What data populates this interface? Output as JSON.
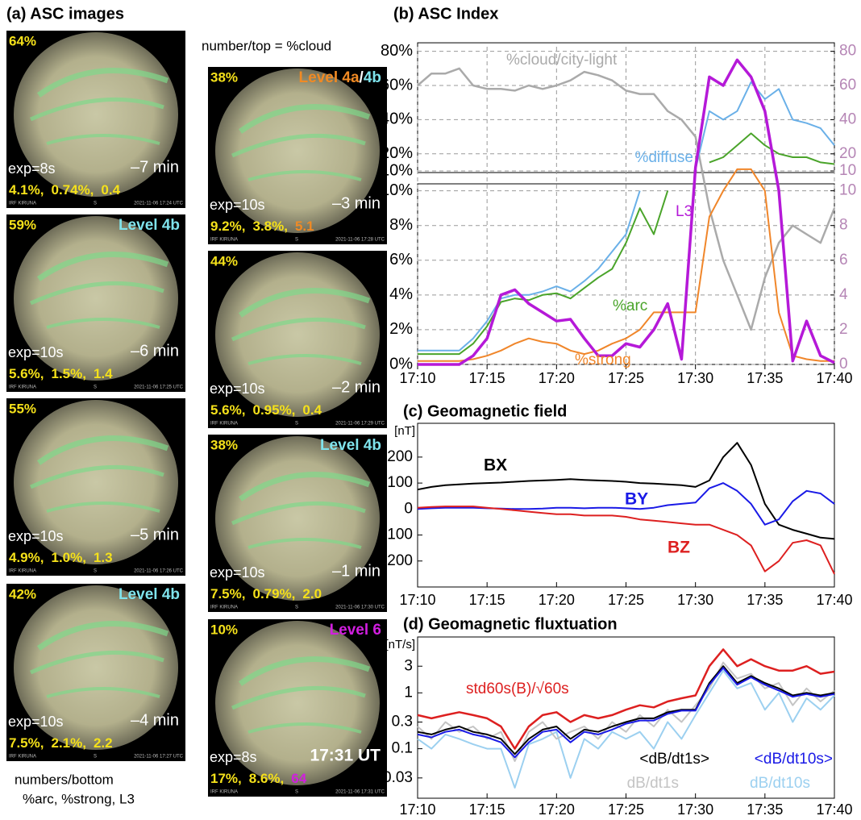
{
  "panel_a": {
    "title": "(a) ASC images",
    "note_top": "number/top = %cloud",
    "note_bottom": [
      "numbers/bottom",
      "%arc, %strong, L3"
    ],
    "bottom_color": "#f5e11a",
    "cloud_color": "#f5e11a",
    "tiles": [
      {
        "cloud": "64%",
        "exp": "exp=8s",
        "time": "–7 min",
        "bottom": [
          "4.1%,",
          "0.74%,",
          "0.4"
        ],
        "footer": [
          "IRF KIRUNA",
          "S",
          "2021-11-06 17:24 UTC"
        ]
      },
      {
        "cloud": "59%",
        "level": [
          {
            "text": "Level 4b",
            "color": "#7fe3ec"
          }
        ],
        "exp": "exp=10s",
        "time": "–6 min",
        "bottom": [
          "5.6%,",
          "1.5%,",
          "1.4"
        ],
        "footer": [
          "IRF KIRUNA",
          "S",
          "2021-11-06 17:25 UTC"
        ]
      },
      {
        "cloud": "55%",
        "exp": "exp=10s",
        "time": "–5 min",
        "bottom": [
          "4.9%,",
          "1.0%,",
          "1.3"
        ],
        "footer": [
          "IRF KIRUNA",
          "S",
          "2021-11-06 17:26 UTC"
        ]
      },
      {
        "cloud": "42%",
        "level": [
          {
            "text": "Level 4b",
            "color": "#7fe3ec"
          }
        ],
        "exp": "exp=10s",
        "time": "–4 min",
        "bottom": [
          "7.5%,",
          "2.1%,",
          "2.2"
        ],
        "footer": [
          "IRF KIRUNA",
          "S",
          "2021-11-06 17:27 UTC"
        ]
      },
      {
        "cloud": "38%",
        "level": [
          {
            "text": "Level 4a",
            "color": "#f08a24"
          },
          {
            "text": "/",
            "color": "#ffffff"
          },
          {
            "text": "4b",
            "color": "#7fe3ec"
          }
        ],
        "exp": "exp=10s",
        "time": "–3 min",
        "bottom": [
          "9.2%,",
          "3.8%,",
          "5.1"
        ],
        "l3_color": "#f08a24",
        "footer": [
          "IRF KIRUNA",
          "S",
          "2021-11-06 17:28 UTC"
        ]
      },
      {
        "cloud": "44%",
        "exp": "exp=10s",
        "time": "–2 min",
        "bottom": [
          "5.6%,",
          "0.95%,",
          "0.4"
        ],
        "footer": [
          "IRF KIRUNA",
          "S",
          "2021-11-06 17:29 UTC"
        ]
      },
      {
        "cloud": "38%",
        "level": [
          {
            "text": "Level 4b",
            "color": "#7fe3ec"
          }
        ],
        "exp": "exp=10s",
        "time": "–1 min",
        "bottom": [
          "7.5%,",
          "0.79%,",
          "2.0"
        ],
        "footer": [
          "IRF KIRUNA",
          "S",
          "2021-11-06 17:30 UTC"
        ]
      },
      {
        "cloud": "10%",
        "level": [
          {
            "text": "Level 6",
            "color": "#d21ee0"
          }
        ],
        "exp": "exp=8s",
        "time": "17:31 UT",
        "bottom": [
          "17%,",
          "8.6%,",
          "64"
        ],
        "l3_color": "#d21ee0",
        "footer": [
          "IRF KIRUNA",
          "S",
          "2021-11-06 17:31 UTC"
        ]
      }
    ]
  },
  "chart_data": [
    {
      "type": "line",
      "title": "(b) ASC Index",
      "grid": true,
      "x": [
        "17:10",
        "17:11",
        "17:12",
        "17:13",
        "17:14",
        "17:15",
        "17:16",
        "17:17",
        "17:18",
        "17:19",
        "17:20",
        "17:21",
        "17:22",
        "17:23",
        "17:24",
        "17:25",
        "17:26",
        "17:27",
        "17:28",
        "17:29",
        "17:30",
        "17:31",
        "17:32",
        "17:33",
        "17:34",
        "17:35",
        "17:36",
        "17:37",
        "17:38",
        "17:39",
        "17:40"
      ],
      "xlim": [
        "17:10",
        "17:40"
      ],
      "xticks": [
        "17:10",
        "17:15",
        "17:20",
        "17:25",
        "17:30",
        "17:35",
        "17:40"
      ],
      "ylim_top": [
        10,
        85
      ],
      "ylim_bottom": [
        0,
        10.4
      ],
      "yticks_top": [
        {
          "value": 80,
          "label": "80%"
        },
        {
          "value": 60,
          "label": "60%"
        },
        {
          "value": 40,
          "label": "40%"
        },
        {
          "value": 20,
          "label": "20%"
        },
        {
          "value": 10,
          "label": "10%"
        }
      ],
      "yticks_bottom": [
        {
          "value": 10,
          "label": "10%"
        },
        {
          "value": 8,
          "label": "8%"
        },
        {
          "value": 6,
          "label": "6%"
        },
        {
          "value": 4,
          "label": "4%"
        },
        {
          "value": 2,
          "label": "2%"
        },
        {
          "value": 0,
          "label": "0%"
        }
      ],
      "y2lim_top": [
        10,
        85
      ],
      "y2lim_bottom": [
        0,
        10.4
      ],
      "y2_color": "#b585b5",
      "y2ticks_top": [
        80,
        60,
        40,
        20,
        10
      ],
      "y2ticks_bottom": [
        10,
        8,
        6,
        4,
        2,
        0
      ],
      "series": [
        {
          "name": "%cloud/city-light",
          "color": "#aaaaaa",
          "values": [
            60,
            67,
            67,
            70,
            60,
            58,
            58,
            57,
            60,
            58,
            60,
            63,
            68,
            66,
            63,
            57,
            55,
            55,
            45,
            40,
            30,
            9,
            6,
            4,
            2,
            5,
            7,
            8,
            7.5,
            7,
            9
          ]
        },
        {
          "name": "%diffuse",
          "color": "#6ab0e8",
          "values": [
            0.8,
            0.8,
            0.8,
            0.8,
            1.5,
            2.5,
            3.8,
            4,
            4,
            4.2,
            4.5,
            4.2,
            4.8,
            5.5,
            6.5,
            7.5,
            10,
            null,
            null,
            null,
            11,
            45,
            40,
            45,
            62,
            52,
            58,
            40,
            38,
            35,
            25
          ]
        },
        {
          "name": "%arc",
          "color": "#4aa42a",
          "values": [
            0.6,
            0.6,
            0.6,
            0.6,
            1.2,
            2.2,
            3.6,
            3.8,
            3.7,
            4,
            4.1,
            3.8,
            4.4,
            5,
            5.5,
            7,
            9,
            7.5,
            10,
            null,
            null,
            15,
            18,
            25,
            32,
            25,
            20,
            18,
            18,
            15,
            14
          ]
        },
        {
          "name": "%strong",
          "color": "#f0862a",
          "values": [
            0.2,
            0.2,
            0.2,
            0.2,
            0.3,
            0.5,
            0.8,
            1.2,
            1.5,
            1.3,
            1.2,
            0.8,
            0.6,
            0.8,
            1.2,
            1.5,
            2,
            3,
            3,
            3,
            3,
            8.5,
            10,
            11,
            11,
            10,
            3,
            0.5,
            0.3,
            0.2,
            0.2
          ]
        },
        {
          "name": "L3",
          "color": "#b519d8",
          "axis": "y2",
          "values": [
            0,
            0,
            0,
            0,
            0.5,
            1.5,
            4,
            4.3,
            3.5,
            3,
            2.5,
            2.6,
            1.5,
            0.5,
            0.5,
            1.2,
            1,
            2,
            3.5,
            0.3,
            12,
            65,
            60,
            75,
            65,
            45,
            10,
            0.2,
            2.5,
            0.5,
            0.1
          ]
        }
      ]
    },
    {
      "type": "line",
      "title": "(c) Geomagnetic field",
      "y_label": "[nT]",
      "grid": false,
      "x": [
        "17:10",
        "17:11",
        "17:12",
        "17:13",
        "17:14",
        "17:15",
        "17:16",
        "17:17",
        "17:18",
        "17:19",
        "17:20",
        "17:21",
        "17:22",
        "17:23",
        "17:24",
        "17:25",
        "17:26",
        "17:27",
        "17:28",
        "17:29",
        "17:30",
        "17:31",
        "17:32",
        "17:33",
        "17:34",
        "17:35",
        "17:36",
        "17:37",
        "17:38",
        "17:39",
        "17:40"
      ],
      "xlim": [
        "17:10",
        "17:40"
      ],
      "xticks": [
        "17:10",
        "17:15",
        "17:20",
        "17:25",
        "17:30",
        "17:35",
        "17:40"
      ],
      "ylim": [
        -300,
        330
      ],
      "yticks": [
        200,
        100,
        0,
        -100,
        -200
      ],
      "series": [
        {
          "name": "BX",
          "color": "#000000",
          "values": [
            75,
            85,
            92,
            95,
            98,
            100,
            102,
            105,
            108,
            110,
            112,
            115,
            112,
            110,
            108,
            105,
            100,
            98,
            95,
            92,
            85,
            110,
            200,
            255,
            170,
            20,
            -60,
            -80,
            -95,
            -110,
            -115
          ]
        },
        {
          "name": "BY",
          "color": "#1a1ae6",
          "values": [
            0,
            3,
            5,
            5,
            5,
            3,
            2,
            0,
            0,
            2,
            5,
            5,
            3,
            5,
            5,
            3,
            0,
            5,
            15,
            20,
            25,
            80,
            100,
            70,
            20,
            -60,
            -40,
            30,
            70,
            60,
            20
          ]
        },
        {
          "name": "BZ",
          "color": "#dd2020",
          "values": [
            5,
            8,
            10,
            10,
            10,
            5,
            0,
            -5,
            -10,
            -15,
            -20,
            -20,
            -25,
            -25,
            -25,
            -30,
            -40,
            -45,
            -50,
            -55,
            -60,
            -60,
            -80,
            -100,
            -140,
            -240,
            -200,
            -130,
            -120,
            -140,
            -250
          ]
        }
      ]
    },
    {
      "type": "line",
      "title": "(d) Geomagnetic fluxtuation",
      "y_label": "[nT/s]",
      "grid": false,
      "log_y": true,
      "x": [
        "17:10",
        "17:11",
        "17:12",
        "17:13",
        "17:14",
        "17:15",
        "17:16",
        "17:17",
        "17:18",
        "17:19",
        "17:20",
        "17:21",
        "17:22",
        "17:23",
        "17:24",
        "17:25",
        "17:26",
        "17:27",
        "17:28",
        "17:29",
        "17:30",
        "17:31",
        "17:32",
        "17:33",
        "17:34",
        "17:35",
        "17:36",
        "17:37",
        "17:38",
        "17:39",
        "17:40"
      ],
      "xlim": [
        "17:10",
        "17:40"
      ],
      "xticks": [
        "17:10",
        "17:15",
        "17:20",
        "17:25",
        "17:30",
        "17:35",
        "17:40"
      ],
      "ylim": [
        0.013,
        10
      ],
      "yticks": [
        3,
        1,
        0.3,
        0.1,
        0.03
      ],
      "series": [
        {
          "name": "dB/dt10s",
          "color": "#9cd0f0",
          "values": [
            0.15,
            0.1,
            0.18,
            0.15,
            0.12,
            0.1,
            0.1,
            0.02,
            0.12,
            0.15,
            0.2,
            0.03,
            0.15,
            0.1,
            0.2,
            0.15,
            0.2,
            0.1,
            0.3,
            0.15,
            0.4,
            1,
            2.5,
            1.2,
            1.5,
            0.5,
            1,
            0.3,
            0.8,
            0.5,
            0.9
          ]
        },
        {
          "name": "dB/dt1s",
          "color": "#c4c4c4",
          "values": [
            0.25,
            0.15,
            0.3,
            0.2,
            0.25,
            0.15,
            0.2,
            0.06,
            0.2,
            0.3,
            0.15,
            0.2,
            0.25,
            0.15,
            0.3,
            0.2,
            0.4,
            0.25,
            0.5,
            0.3,
            0.6,
            1.2,
            3.5,
            1.8,
            2.2,
            1.2,
            1.5,
            0.6,
            1.2,
            0.7,
            1.1
          ]
        },
        {
          "name": "<dB/dt1s>",
          "color": "#000000",
          "values": [
            0.2,
            0.18,
            0.22,
            0.25,
            0.2,
            0.18,
            0.15,
            0.08,
            0.15,
            0.22,
            0.25,
            0.15,
            0.22,
            0.2,
            0.25,
            0.3,
            0.35,
            0.35,
            0.45,
            0.5,
            0.5,
            1.5,
            3,
            1.5,
            2,
            1.5,
            1.2,
            0.9,
            1,
            0.9,
            1
          ]
        },
        {
          "name": "<dB/dt10s>",
          "color": "#1a1ae6",
          "values": [
            0.18,
            0.16,
            0.2,
            0.22,
            0.18,
            0.16,
            0.13,
            0.07,
            0.13,
            0.2,
            0.22,
            0.13,
            0.2,
            0.18,
            0.22,
            0.28,
            0.32,
            0.32,
            0.42,
            0.48,
            0.48,
            1.4,
            2.8,
            1.4,
            1.9,
            1.4,
            1.1,
            0.85,
            0.95,
            0.85,
            0.95
          ]
        },
        {
          "name": "std60s(B)/√60s",
          "color": "#dd2020",
          "values": [
            0.4,
            0.35,
            0.4,
            0.45,
            0.4,
            0.35,
            0.25,
            0.1,
            0.25,
            0.4,
            0.45,
            0.3,
            0.4,
            0.35,
            0.4,
            0.5,
            0.6,
            0.55,
            0.7,
            0.8,
            0.9,
            3,
            6,
            3,
            4,
            3,
            2.5,
            2.5,
            3,
            2.2,
            2.4
          ]
        }
      ]
    }
  ]
}
